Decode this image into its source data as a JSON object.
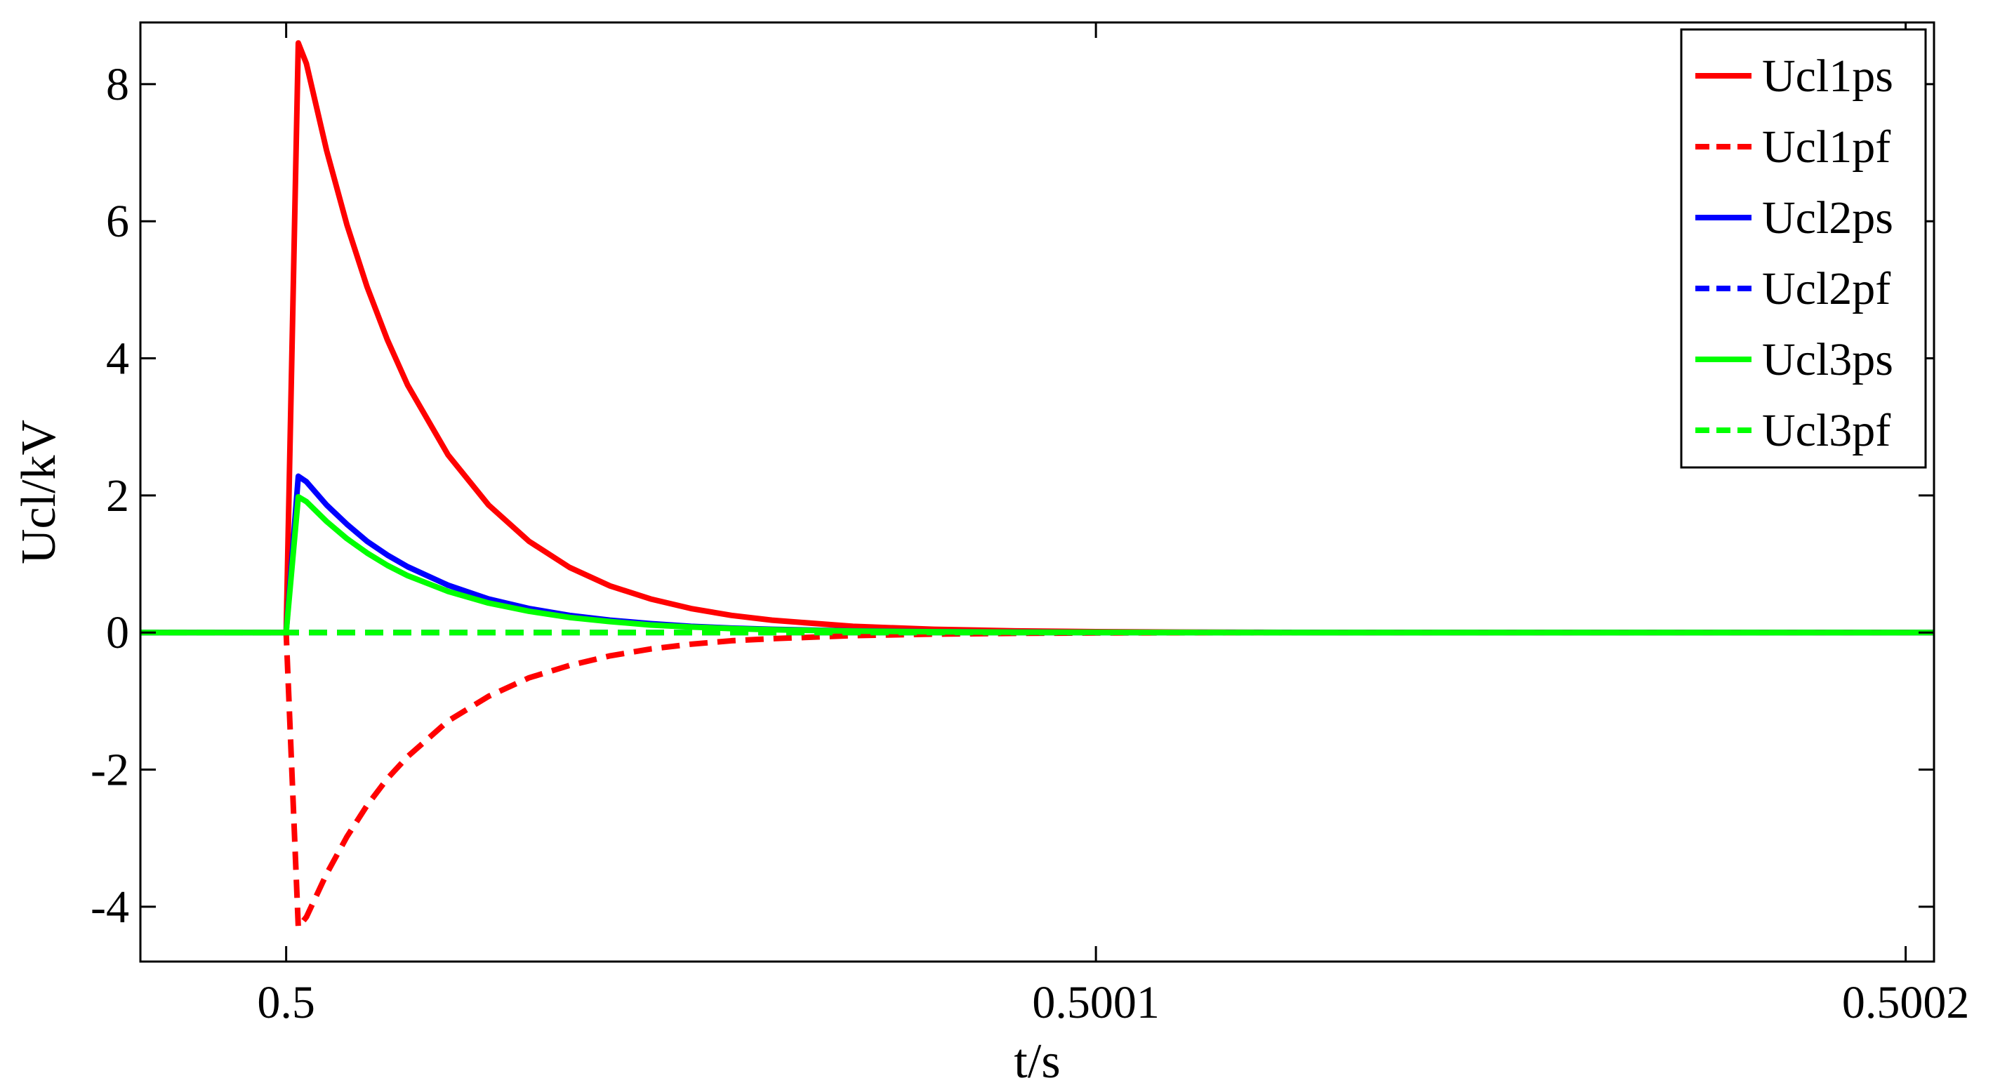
{
  "chart_data": {
    "type": "line",
    "title": "",
    "xlabel": "t/s",
    "ylabel": "Ucl/kV",
    "xlim": [
      0.499982,
      0.5002035
    ],
    "ylim": [
      -4.8,
      8.9
    ],
    "xticks": [
      0.5,
      0.5001,
      0.5002
    ],
    "xtick_labels": [
      "0.5",
      "0.5001",
      "0.5002"
    ],
    "yticks": [
      -4,
      -2,
      0,
      2,
      4,
      6,
      8
    ],
    "ytick_labels": [
      "-4",
      "-2",
      "0",
      "2",
      "4",
      "6",
      "8"
    ],
    "grid": false,
    "legend": "top-right",
    "series": [
      {
        "name": "Ucl1ps",
        "color": "#ff0000",
        "dash": "solid",
        "x": [
          0.499982,
          0.5,
          0.5000015,
          0.5000025,
          0.500005,
          0.5000075,
          0.50001,
          0.5000125,
          0.500015,
          0.50002,
          0.500025,
          0.50003,
          0.500035,
          0.50004,
          0.500045,
          0.50005,
          0.500055,
          0.50006,
          0.50007,
          0.50008,
          0.50009,
          0.5001,
          0.50011,
          0.50012,
          0.50013,
          0.5002035
        ],
        "y": [
          0,
          0,
          8.6,
          8.3,
          7.03,
          5.95,
          5.04,
          4.27,
          3.61,
          2.59,
          1.86,
          1.33,
          0.95,
          0.68,
          0.49,
          0.35,
          0.25,
          0.18,
          0.09,
          0.047,
          0.024,
          0.012,
          0.006,
          0.003,
          0,
          0
        ]
      },
      {
        "name": "Ucl1pf",
        "color": "#ff0000",
        "dash": "dashed",
        "x": [
          0.499982,
          0.5,
          0.5000015,
          0.5000025,
          0.500005,
          0.5000075,
          0.50001,
          0.5000125,
          0.500015,
          0.50002,
          0.500025,
          0.50003,
          0.500035,
          0.50004,
          0.500045,
          0.50005,
          0.500055,
          0.50006,
          0.50007,
          0.50008,
          0.50009,
          0.5001,
          0.50011,
          0.50012,
          0.50013,
          0.5002035
        ],
        "y": [
          0,
          0,
          -4.3,
          -4.15,
          -3.52,
          -2.98,
          -2.52,
          -2.13,
          -1.81,
          -1.29,
          -0.93,
          -0.66,
          -0.48,
          -0.34,
          -0.24,
          -0.17,
          -0.12,
          -0.09,
          -0.045,
          -0.023,
          -0.012,
          -0.006,
          -0.003,
          -0.001,
          0,
          0
        ]
      },
      {
        "name": "Ucl2ps",
        "color": "#0000ff",
        "dash": "solid",
        "x": [
          0.499982,
          0.5,
          0.5000015,
          0.5000025,
          0.500005,
          0.5000075,
          0.50001,
          0.5000125,
          0.500015,
          0.50002,
          0.500025,
          0.50003,
          0.500035,
          0.50004,
          0.500045,
          0.50005,
          0.500055,
          0.50006,
          0.50007,
          0.50008,
          0.50009,
          0.5001,
          0.50011,
          0.50012,
          0.50013,
          0.5002035
        ],
        "y": [
          0,
          0,
          2.28,
          2.2,
          1.86,
          1.58,
          1.33,
          1.13,
          0.96,
          0.69,
          0.49,
          0.35,
          0.25,
          0.18,
          0.13,
          0.09,
          0.065,
          0.047,
          0.024,
          0.012,
          0.006,
          0.003,
          0.002,
          0.001,
          0,
          0
        ]
      },
      {
        "name": "Ucl2pf",
        "color": "#0000ff",
        "dash": "dashed",
        "x": [
          0.499982,
          0.5002035
        ],
        "y": [
          0,
          0
        ]
      },
      {
        "name": "Ucl3ps",
        "color": "#00ff00",
        "dash": "solid",
        "x": [
          0.499982,
          0.5,
          0.5000015,
          0.5000025,
          0.500005,
          0.5000075,
          0.50001,
          0.5000125,
          0.500015,
          0.50002,
          0.500025,
          0.50003,
          0.500035,
          0.50004,
          0.500045,
          0.50005,
          0.500055,
          0.50006,
          0.50007,
          0.50008,
          0.50009,
          0.5001,
          0.50011,
          0.50012,
          0.50013,
          0.5002035
        ],
        "y": [
          0,
          0,
          1.98,
          1.91,
          1.62,
          1.37,
          1.16,
          0.98,
          0.83,
          0.6,
          0.43,
          0.31,
          0.22,
          0.16,
          0.11,
          0.08,
          0.057,
          0.041,
          0.021,
          0.011,
          0.005,
          0.003,
          0.001,
          0,
          0,
          0
        ]
      },
      {
        "name": "Ucl3pf",
        "color": "#00ff00",
        "dash": "dashed",
        "x": [
          0.499982,
          0.5002035
        ],
        "y": [
          0,
          0
        ]
      }
    ]
  }
}
